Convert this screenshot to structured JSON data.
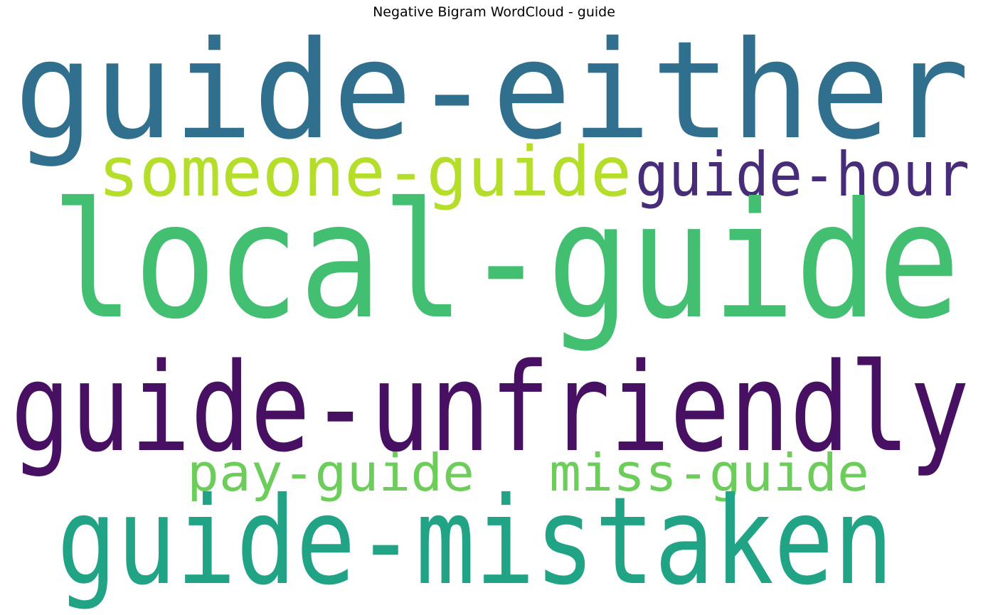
{
  "chart_data": {
    "type": "wordcloud",
    "title": "Negative Bigram WordCloud - guide",
    "words": [
      {
        "text": "guide-either",
        "color": "#30708e"
      },
      {
        "text": "someone-guide",
        "color": "#b5de2b"
      },
      {
        "text": "guide-hour",
        "color": "#472c7a"
      },
      {
        "text": "local-guide",
        "color": "#43bf71"
      },
      {
        "text": "guide-unfriendly",
        "color": "#471063"
      },
      {
        "text": "pay-guide",
        "color": "#6ccd5a"
      },
      {
        "text": "miss-guide",
        "color": "#6ccd5a"
      },
      {
        "text": "guide-mistaken",
        "color": "#21a386"
      }
    ]
  }
}
